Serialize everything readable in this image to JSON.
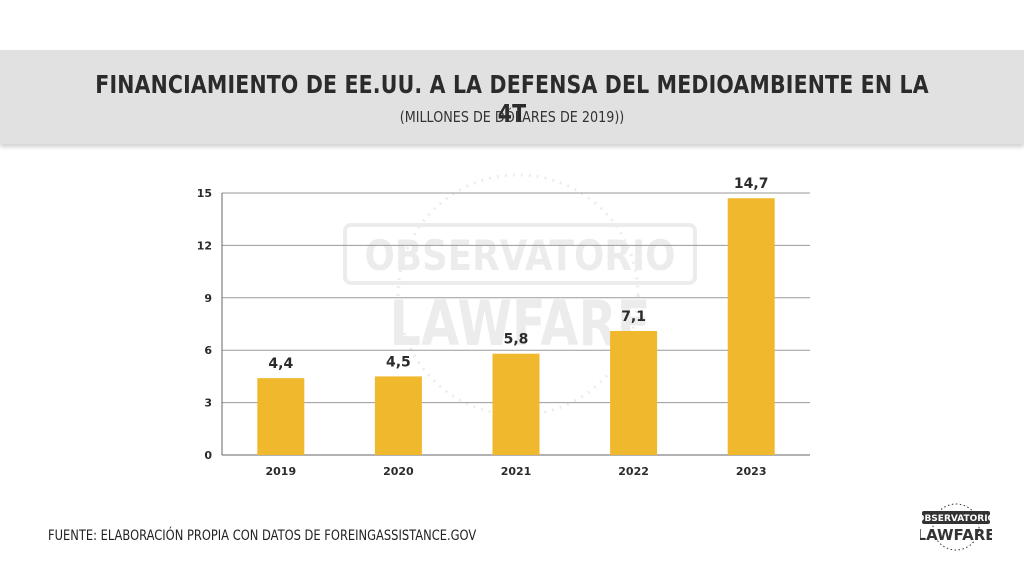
{
  "header": {
    "title": "FINANCIAMIENTO DE EE.UU. A LA DEFENSA DEL MEDIOAMBIENTE EN LA 4T",
    "subtitle": "(MILLONES DE DÓLARES DE 2019))"
  },
  "source": "FUENTE: ELABORACIÓN PROPIA CON DATOS DE FOREINGASSISTANCE.GOV",
  "watermark": {
    "line1": "OBSERVATORIO",
    "line2": "LAWFARE"
  },
  "logo": {
    "line1": "OBSERVATORIO",
    "line2": "LAWFARE"
  },
  "colors": {
    "bar": "#f0b82c",
    "grid": "#9a9a9a",
    "text": "#2b2b2b",
    "band": "#e1e1e1"
  },
  "chart_data": {
    "type": "bar",
    "categories": [
      "2019",
      "2020",
      "2021",
      "2022",
      "2023"
    ],
    "values": [
      4.4,
      4.5,
      5.8,
      7.1,
      14.7
    ],
    "value_labels": [
      "4,4",
      "4,5",
      "5,8",
      "7,1",
      "14,7"
    ],
    "yticks": [
      0,
      3,
      6,
      9,
      12,
      15
    ],
    "ylim": [
      0,
      15
    ],
    "grid": true,
    "title": "FINANCIAMIENTO DE EE.UU. A LA DEFENSA DEL MEDIOAMBIENTE EN LA 4T",
    "xlabel": "",
    "ylabel": ""
  }
}
